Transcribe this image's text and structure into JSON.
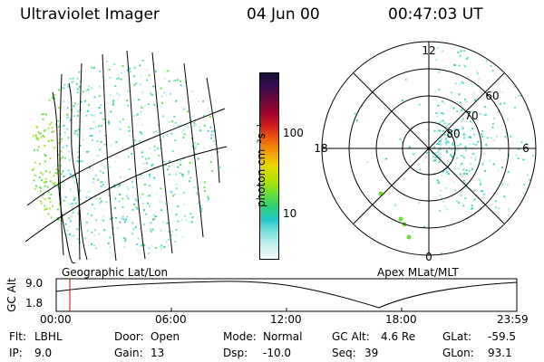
{
  "header": {
    "instrument": "Ultraviolet Imager",
    "date": "04 Jun 00",
    "time": "00:47:03 UT"
  },
  "left_panel": {
    "caption": "Geographic Lat/Lon"
  },
  "right_panel": {
    "caption": "Apex MLat/MLT",
    "mlt_labels": {
      "top": "12",
      "right": "6",
      "left": "18",
      "bottom": "0"
    },
    "lat_labels": [
      "60",
      "70",
      "80"
    ]
  },
  "colorbar": {
    "unit_label": "photon cm⁻²s⁻¹",
    "ticks": [
      "100",
      "10"
    ],
    "colors": [
      "#111133",
      "#3a0a55",
      "#6a0a3a",
      "#a0002a",
      "#d02020",
      "#f06010",
      "#f0a000",
      "#e8d800",
      "#b8e000",
      "#70e030",
      "#30d070",
      "#20c8c8",
      "#80e0e0",
      "#c8f0f0",
      "#f4fbfb"
    ]
  },
  "timeline": {
    "axis_label": "GC Alt",
    "y_ticks": [
      "9.0",
      "1.8"
    ],
    "x_ticks": [
      "00:00",
      "06:00",
      "12:00",
      "18:00",
      "23:59"
    ],
    "marker_color": "#d00000"
  },
  "info": {
    "flt_label": "Flt:",
    "flt_value": "LBHL",
    "ip_label": "IP:",
    "ip_value": "9.0",
    "door_label": "Door:",
    "door_value": "Open",
    "gain_label": "Gain:",
    "gain_value": "13",
    "mode_label": "Mode:",
    "mode_value": "Normal",
    "dsp_label": "Dsp:",
    "dsp_value": "-10.0",
    "gcalt_label": "GC Alt:",
    "gcalt_value": "4.6 Re",
    "seq_label": "Seq:",
    "seq_value": "39",
    "glat_label": "GLat:",
    "glat_value": "-59.5",
    "glon_label": "GLon:",
    "glon_value": "93.1"
  }
}
